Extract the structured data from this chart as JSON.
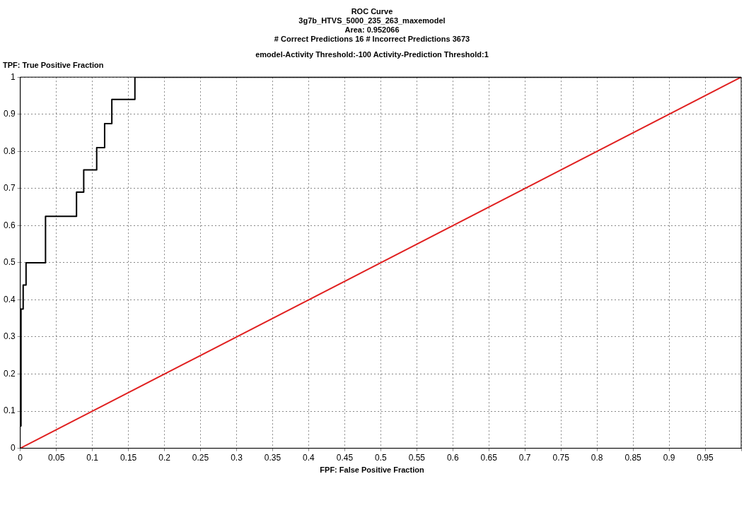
{
  "chart_data": {
    "type": "line",
    "title": "ROC Curve",
    "subtitle": "3g7b_HTVS_5000_235_263_maxemodel",
    "annotations": [
      "Area: 0.952066",
      "# Correct Predictions  16   # Incorrect Predictions  3673",
      "emodel-Activity Threshold:-100    Activity-Prediction Threshold:1"
    ],
    "xlabel": "FPF: False Positive Fraction",
    "ylabel": "TPF: True Positive Fraction",
    "series": [
      {
        "type": "step",
        "color": "#000000",
        "x": [
          0,
          0.001,
          0.004,
          0.008,
          0.035,
          0.078,
          0.088,
          0.106,
          0.117,
          0.127,
          0.159,
          1
        ],
        "values": [
          0.06,
          0.375,
          0.44,
          0.5,
          0.625,
          0.69,
          0.75,
          0.81,
          0.875,
          0.94,
          1,
          1
        ]
      },
      {
        "type": "line",
        "color": "#e02020",
        "x": [
          0,
          1
        ],
        "values": [
          0,
          1
        ]
      }
    ],
    "xlim": [
      0,
      1
    ],
    "ylim": [
      0,
      1
    ],
    "xticks": [
      0,
      0.05,
      0.1,
      0.15,
      0.2,
      0.25,
      0.3,
      0.35,
      0.4,
      0.45,
      0.5,
      0.55,
      0.6,
      0.65,
      0.7,
      0.75,
      0.8,
      0.85,
      0.9,
      0.95,
      {
        "value": 1,
        "label": null
      }
    ],
    "yticks": [
      0,
      0.1,
      0.2,
      0.3,
      0.4,
      0.5,
      0.6,
      0.7,
      0.8,
      0.9,
      1
    ],
    "grid": true,
    "legend": false,
    "marker": "none",
    "line_style": "solid"
  }
}
